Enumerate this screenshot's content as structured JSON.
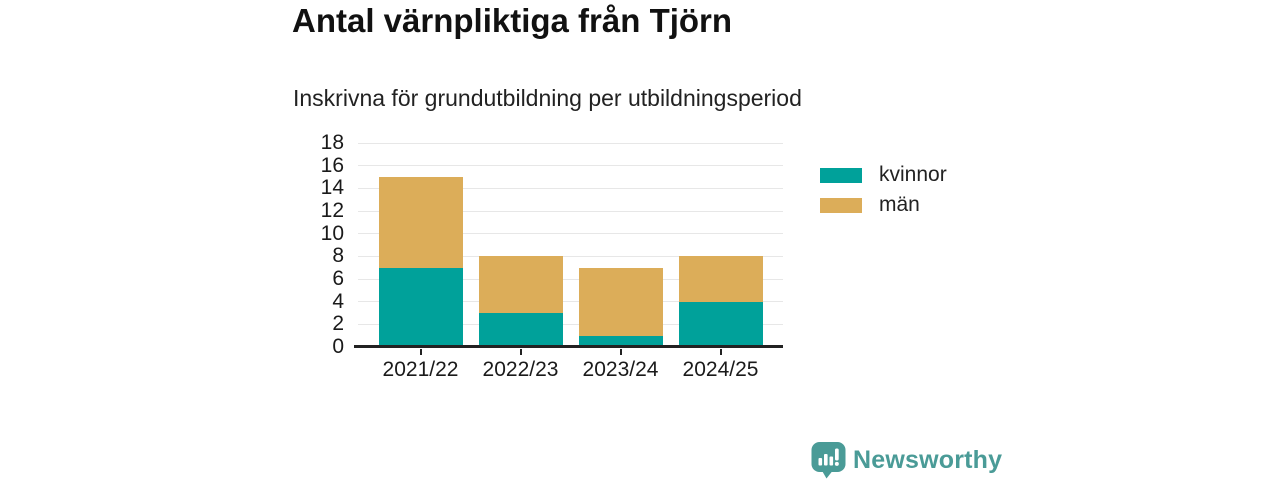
{
  "chart_data": {
    "type": "bar",
    "stacked": true,
    "title": "Antal värnpliktiga från Tjörn",
    "subtitle": "Inskrivna för grundutbildning per utbildningsperiod",
    "categories": [
      "2021/22",
      "2022/23",
      "2023/24",
      "2024/25"
    ],
    "series": [
      {
        "name": "kvinnor",
        "color": "#00a19a",
        "values": [
          7,
          3,
          1,
          4
        ]
      },
      {
        "name": "män",
        "color": "#dcad59",
        "values": [
          8,
          5,
          6,
          4
        ]
      }
    ],
    "stack_totals": [
      15,
      8,
      7,
      8
    ],
    "xlabel": "",
    "ylabel": "",
    "ylim": [
      0,
      18
    ],
    "yticks": [
      0,
      2,
      4,
      6,
      8,
      10,
      12,
      14,
      16,
      18
    ],
    "grid": true,
    "legend_position": "right"
  },
  "colors": {
    "axis": "#222222",
    "grid": "#e7e7e7",
    "text": "#1a1a1a"
  },
  "footer": {
    "brand": "Newsworthy",
    "brand_color": "#4a9b97"
  }
}
